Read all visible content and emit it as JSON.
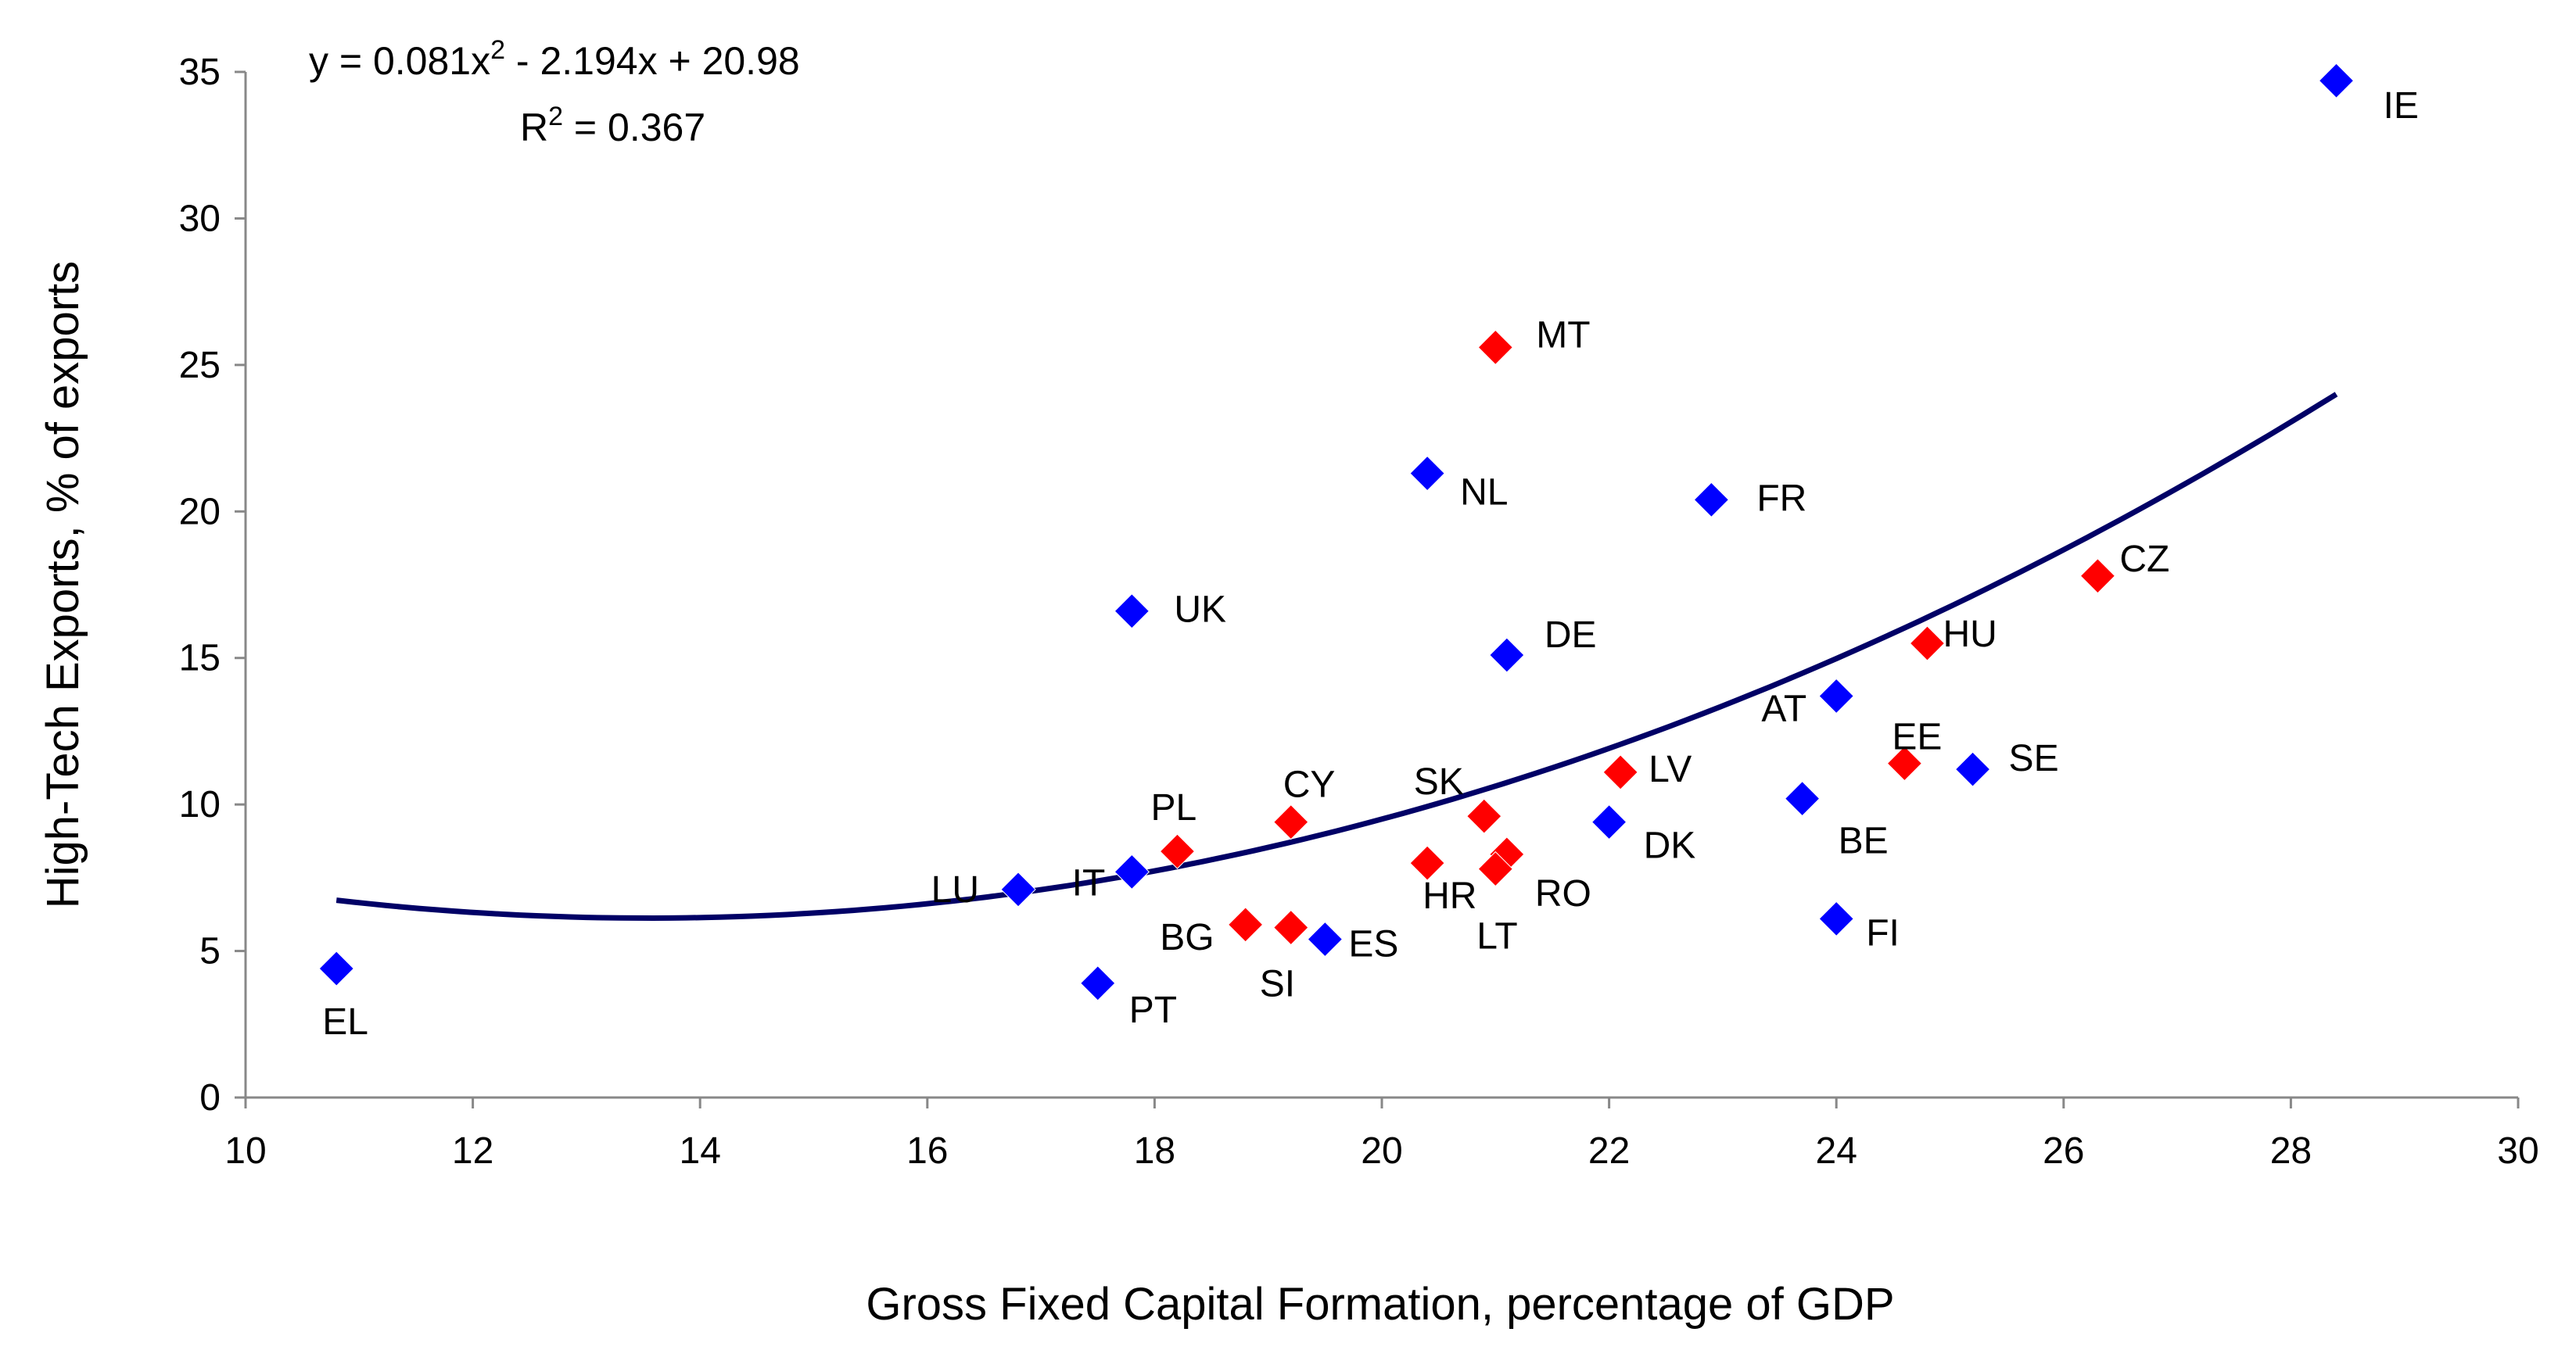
{
  "chart_data": {
    "type": "scatter",
    "xlabel": "Gross Fixed Capital Formation, percentage of GDP",
    "ylabel": "High-Tech Exports, % of exports",
    "xlim": [
      10,
      30
    ],
    "ylim": [
      0,
      35
    ],
    "xticks": [
      "10",
      "12",
      "14",
      "16",
      "18",
      "20",
      "22",
      "24",
      "26",
      "28",
      "30"
    ],
    "yticks": [
      "0",
      "5",
      "10",
      "15",
      "20",
      "25",
      "30",
      "35"
    ],
    "grid": false,
    "legend": "none",
    "colors": {
      "blue": "#0000ff",
      "red": "#ff0000",
      "trend": "#000066",
      "axis": "#888888"
    },
    "series": [
      {
        "color": "blue",
        "points": [
          {
            "label": "IE",
            "x": 28.4,
            "y": 34.7
          },
          {
            "label": "NL",
            "x": 20.4,
            "y": 21.3
          },
          {
            "label": "FR",
            "x": 22.9,
            "y": 20.4
          },
          {
            "label": "UK",
            "x": 17.8,
            "y": 16.6
          },
          {
            "label": "DE",
            "x": 21.1,
            "y": 15.1
          },
          {
            "label": "AT",
            "x": 24.0,
            "y": 13.7
          },
          {
            "label": "SE",
            "x": 25.2,
            "y": 11.2
          },
          {
            "label": "BE",
            "x": 23.7,
            "y": 10.2
          },
          {
            "label": "DK",
            "x": 22.0,
            "y": 9.4
          },
          {
            "label": "IT",
            "x": 17.8,
            "y": 7.7
          },
          {
            "label": "LU",
            "x": 16.8,
            "y": 7.1
          },
          {
            "label": "FI",
            "x": 24.0,
            "y": 6.1
          },
          {
            "label": "ES",
            "x": 19.5,
            "y": 5.4
          },
          {
            "label": "EL",
            "x": 10.8,
            "y": 4.4
          },
          {
            "label": "PT",
            "x": 17.5,
            "y": 3.9
          }
        ]
      },
      {
        "color": "red",
        "points": [
          {
            "label": "MT",
            "x": 21.0,
            "y": 25.6
          },
          {
            "label": "CZ",
            "x": 26.3,
            "y": 17.8
          },
          {
            "label": "HU",
            "x": 24.8,
            "y": 15.5
          },
          {
            "label": "EE",
            "x": 24.6,
            "y": 11.4
          },
          {
            "label": "LV",
            "x": 22.1,
            "y": 11.1
          },
          {
            "label": "SK",
            "x": 20.9,
            "y": 9.6
          },
          {
            "label": "CY",
            "x": 19.2,
            "y": 9.4
          },
          {
            "label": "PL",
            "x": 18.2,
            "y": 8.4
          },
          {
            "label": "RO",
            "x": 21.1,
            "y": 8.3
          },
          {
            "label": "HR",
            "x": 20.4,
            "y": 8.0
          },
          {
            "label": "LT",
            "x": 21.0,
            "y": 7.8
          },
          {
            "label": "BG",
            "x": 18.8,
            "y": 5.9
          },
          {
            "label": "SI",
            "x": 19.2,
            "y": 5.8
          }
        ]
      }
    ],
    "trendline": {
      "type": "polynomial",
      "coefficients": {
        "a": 0.081,
        "b": -2.194,
        "c": 20.98
      },
      "x_range": [
        10.8,
        28.4
      ]
    },
    "annotations": {
      "equation_prefix": "y = 0.081x",
      "equation_exp": "2",
      "equation_suffix": " - 2.194x + 20.98",
      "r2_prefix": "R",
      "r2_exp": "2",
      "r2_suffix": " = 0.367"
    }
  }
}
